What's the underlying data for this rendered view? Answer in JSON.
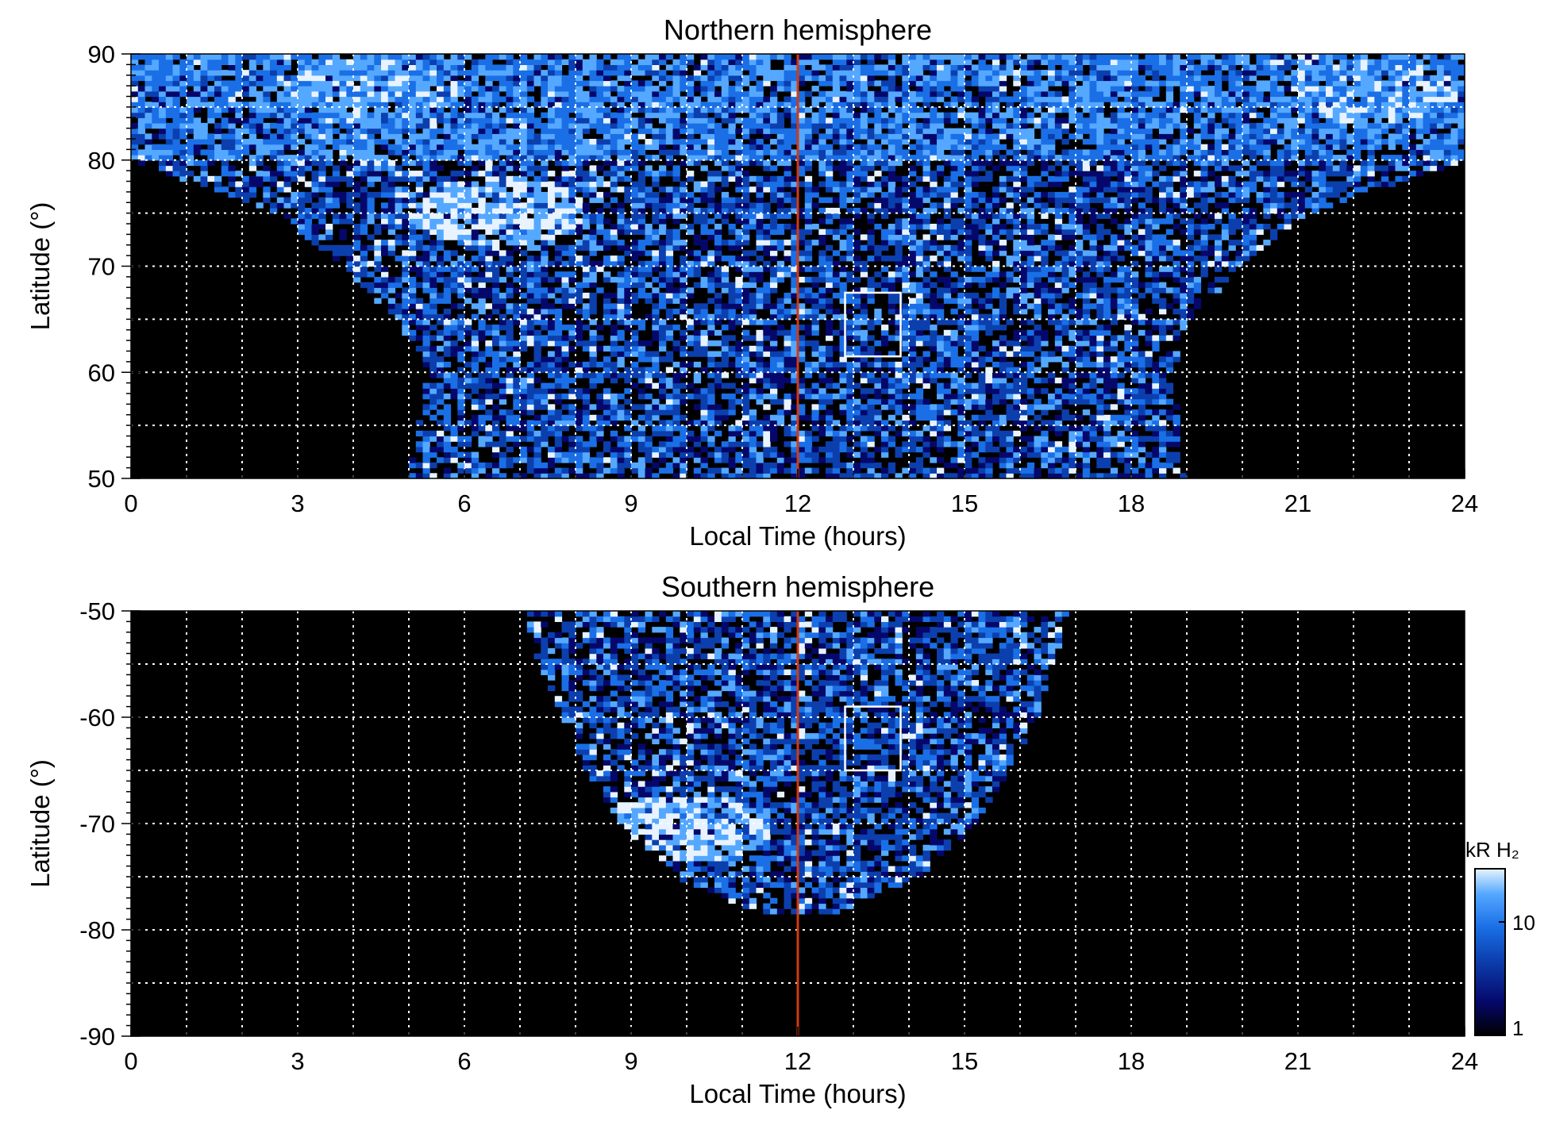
{
  "chart_data": [
    {
      "type": "heatmap",
      "title": "Northern hemisphere",
      "xlabel": "Local Time (hours)",
      "ylabel": "Latitude (°)",
      "xlim": [
        0,
        24
      ],
      "ylim": [
        50,
        90
      ],
      "x_ticks": [
        0,
        3,
        6,
        9,
        12,
        15,
        18,
        21,
        24
      ],
      "y_ticks": [
        50,
        60,
        70,
        80,
        90
      ],
      "grid": true,
      "noon_line_lt": 12,
      "noon_line_color": "#d23a10",
      "box": {
        "lt": [
          12.85,
          13.85
        ],
        "lat": [
          61.5,
          67.5
        ]
      },
      "coverage": {
        "lat": [
          50,
          55,
          60,
          65,
          70,
          75,
          80,
          90
        ],
        "lt_start": [
          5.0,
          5.15,
          5.35,
          4.75,
          3.8,
          2.65,
          0.0,
          0.0
        ],
        "lt_end": [
          18.95,
          18.85,
          18.75,
          19.05,
          20.0,
          21.2,
          24.0,
          24.0
        ]
      },
      "bright_regions": [
        {
          "lt": 6.6,
          "lat": 75.2,
          "level": "high"
        },
        {
          "lt": 4.3,
          "lat": 86.5,
          "level": "high"
        },
        {
          "lt": 22.3,
          "lat": 86.5,
          "level": "high"
        }
      ]
    },
    {
      "type": "heatmap",
      "title": "Southern hemisphere",
      "xlabel": "Local Time (hours)",
      "ylabel": "Latitude (°)",
      "xlim": [
        0,
        24
      ],
      "ylim": [
        -90,
        -50
      ],
      "x_ticks": [
        0,
        3,
        6,
        9,
        12,
        15,
        18,
        21,
        24
      ],
      "y_ticks": [
        -50,
        -60,
        -70,
        -80,
        -90
      ],
      "grid": true,
      "noon_line_lt": 12,
      "noon_line_color": "#d23a10",
      "box": {
        "lt": [
          12.85,
          13.85
        ],
        "lat": [
          -65,
          -59
        ]
      },
      "coverage": {
        "lat": [
          -50,
          -55,
          -60,
          -65,
          -70,
          -75,
          -78.5
        ],
        "lt_start": [
          7.1,
          7.35,
          7.75,
          8.2,
          8.8,
          9.8,
          11.2
        ],
        "lt_end": [
          16.9,
          16.6,
          16.3,
          15.8,
          15.2,
          14.2,
          12.6
        ]
      },
      "bright_regions": [
        {
          "lt": 9.9,
          "lat": -70.5,
          "level": "high"
        }
      ]
    }
  ],
  "colorbar": {
    "label": "kR H₂",
    "ticks": [
      "1",
      "10"
    ],
    "colors": [
      "#000000",
      "#05086a",
      "#0c3fae",
      "#1a6fe6",
      "#55a8ff",
      "#e8f3ff"
    ]
  }
}
